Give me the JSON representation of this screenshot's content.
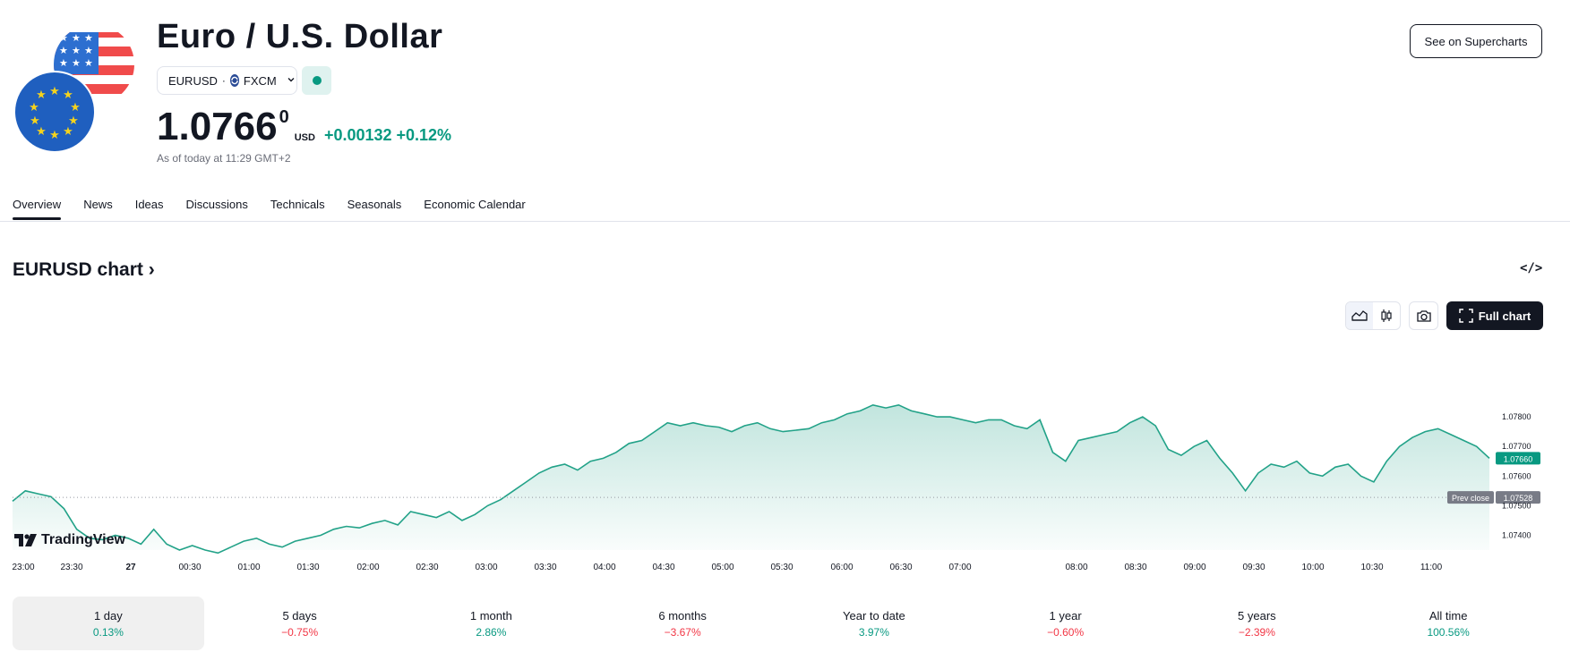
{
  "header": {
    "title": "Euro / U.S. Dollar",
    "symbol": "EURUSD",
    "exchange": "FXCM",
    "price_main": "1.0766",
    "price_sup": "0",
    "currency": "USD",
    "change": "+0.00132 +0.12%",
    "as_of": "As of today at 11:29 GMT+2",
    "supercharts_label": "See on Supercharts"
  },
  "tabs": [
    {
      "label": "Overview"
    },
    {
      "label": "News"
    },
    {
      "label": "Ideas"
    },
    {
      "label": "Discussions"
    },
    {
      "label": "Technicals"
    },
    {
      "label": "Seasonals"
    },
    {
      "label": "Economic Calendar"
    }
  ],
  "chart_header": {
    "title": "EURUSD chart ›",
    "embed_icon": "</>",
    "full_chart_label": "Full chart"
  },
  "chart_data": {
    "type": "area",
    "series_color": "#22a288",
    "x_labels": [
      "23:00",
      "23:30",
      "27",
      "00:30",
      "01:00",
      "01:30",
      "02:00",
      "02:30",
      "03:00",
      "03:30",
      "04:00",
      "04:30",
      "05:00",
      "05:30",
      "06:00",
      "06:30",
      "07:00",
      "08:00",
      "08:30",
      "09:00",
      "09:30",
      "10:00",
      "10:30",
      "11:00"
    ],
    "y_ticks": [
      "1.07800",
      "1.07700",
      "1.07600",
      "1.07500",
      "1.07400"
    ],
    "y_tick_values": [
      1.078,
      1.077,
      1.076,
      1.075,
      1.074
    ],
    "ylim": [
      1.0735,
      1.0806
    ],
    "current_label": "1.07660",
    "current_value": 1.0766,
    "prev_close_label": "Prev close",
    "prev_close_value_label": "1.07528",
    "prev_close_value": 1.07528,
    "values": [
      1.07515,
      1.0755,
      1.0754,
      1.0753,
      1.0749,
      1.0742,
      1.0739,
      1.07385,
      1.074,
      1.0739,
      1.0737,
      1.0742,
      1.0737,
      1.0735,
      1.07365,
      1.0735,
      1.0734,
      1.0736,
      1.0738,
      1.0739,
      1.0737,
      1.0736,
      1.0738,
      1.0739,
      1.074,
      1.0742,
      1.0743,
      1.07425,
      1.0744,
      1.0745,
      1.07435,
      1.0748,
      1.0747,
      1.0746,
      1.0748,
      1.0745,
      1.0747,
      1.075,
      1.0752,
      1.0755,
      1.0758,
      1.0761,
      1.0763,
      1.0764,
      1.0762,
      1.0765,
      1.0766,
      1.0768,
      1.0771,
      1.0772,
      1.0775,
      1.0778,
      1.0777,
      1.0778,
      1.0777,
      1.07765,
      1.0775,
      1.0777,
      1.0778,
      1.0776,
      1.0775,
      1.07755,
      1.0776,
      1.0778,
      1.0779,
      1.0781,
      1.0782,
      1.0784,
      1.0783,
      1.0784,
      1.0782,
      1.0781,
      1.078,
      1.078,
      1.0779,
      1.0778,
      1.0779,
      1.0779,
      1.0777,
      1.0776,
      1.0779,
      1.0768,
      1.0765,
      1.0772,
      1.0773,
      1.0774,
      1.0775,
      1.0778,
      1.078,
      1.0777,
      1.0769,
      1.0767,
      1.077,
      1.0772,
      1.0766,
      1.0761,
      1.0755,
      1.0761,
      1.0764,
      1.0763,
      1.0765,
      1.0761,
      1.076,
      1.0763,
      1.0764,
      1.076,
      1.0758,
      1.0765,
      1.077,
      1.0773,
      1.0775,
      1.0776,
      1.0774,
      1.0772,
      1.077,
      1.0766
    ],
    "chart_label": "TradingView"
  },
  "periods": [
    {
      "label": "1 day",
      "value": "0.13%",
      "dir": "pos"
    },
    {
      "label": "5 days",
      "value": "−0.75%",
      "dir": "neg"
    },
    {
      "label": "1 month",
      "value": "2.86%",
      "dir": "pos"
    },
    {
      "label": "6 months",
      "value": "−3.67%",
      "dir": "neg"
    },
    {
      "label": "Year to date",
      "value": "3.97%",
      "dir": "pos"
    },
    {
      "label": "1 year",
      "value": "−0.60%",
      "dir": "neg"
    },
    {
      "label": "5 years",
      "value": "−2.39%",
      "dir": "neg"
    },
    {
      "label": "All time",
      "value": "100.56%",
      "dir": "pos"
    }
  ],
  "colors": {
    "accent_green": "#089981",
    "negative_red": "#f23645",
    "text": "#131722"
  },
  "icons": {
    "logo": "eu-us-flags",
    "fxcm": "fxcm-logo-icon",
    "status": "market-open-dot",
    "area_chart": "area-chart-icon",
    "candles": "candles-icon",
    "camera": "camera-icon",
    "fullscreen": "fullscreen-icon",
    "embed": "code-embed-icon"
  }
}
